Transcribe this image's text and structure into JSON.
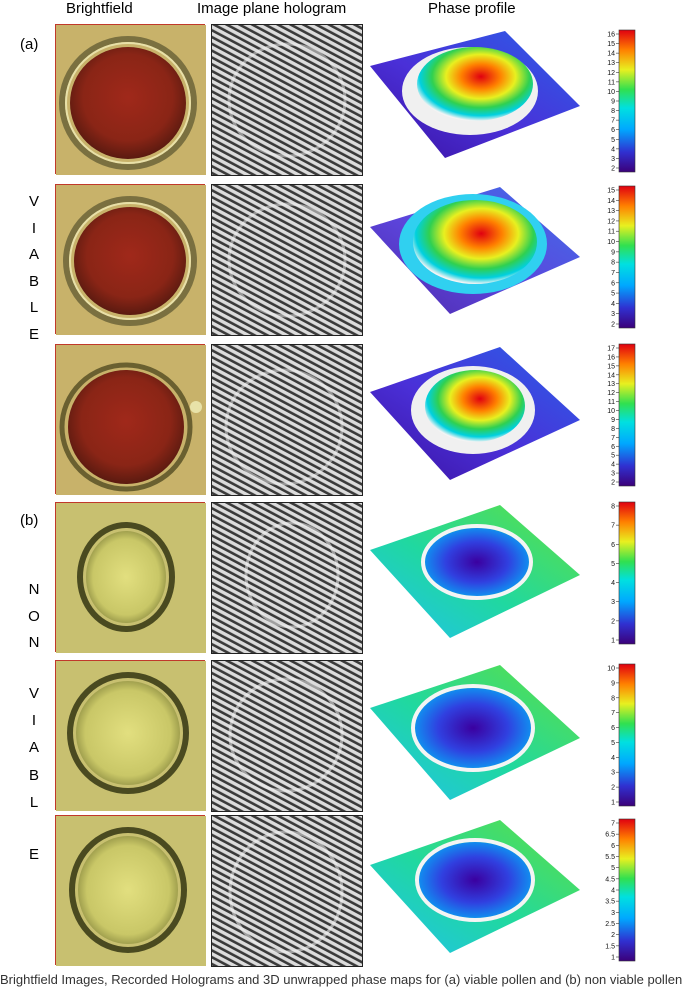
{
  "headers": {
    "brightfield": "Brightfield",
    "hologram": "Image plane hologram",
    "phase": "Phase profile"
  },
  "groups": {
    "a": {
      "tag": "(a)",
      "letters": [
        "V",
        "I",
        "A",
        "B",
        "L",
        "E"
      ]
    },
    "b": {
      "tag": "(b)",
      "letters": [
        "N",
        "O",
        "N",
        "V",
        "I",
        "A",
        "B",
        "L",
        "E"
      ]
    }
  },
  "colorbars": [
    {
      "ticks": [
        "16",
        "15",
        "14",
        "13",
        "12",
        "11",
        "10",
        "9",
        "8",
        "7",
        "6",
        "5",
        "4",
        "3",
        "2"
      ]
    },
    {
      "ticks": [
        "15",
        "14",
        "13",
        "12",
        "11",
        "10",
        "9",
        "8",
        "7",
        "6",
        "5",
        "4",
        "3",
        "2"
      ]
    },
    {
      "ticks": [
        "17",
        "16",
        "15",
        "14",
        "13",
        "12",
        "11",
        "10",
        "9",
        "8",
        "7",
        "6",
        "5",
        "4",
        "3",
        "2"
      ]
    },
    {
      "ticks": [
        "8",
        "7",
        "6",
        "5",
        "4",
        "3",
        "2",
        "1"
      ]
    },
    {
      "ticks": [
        "10",
        "9",
        "8",
        "7",
        "6",
        "5",
        "4",
        "3",
        "2",
        "1"
      ]
    },
    {
      "ticks": [
        "7",
        "6.5",
        "6",
        "5.5",
        "5",
        "4.5",
        "4",
        "3.5",
        "3",
        "2.5",
        "2",
        "1.5",
        "1"
      ]
    }
  ],
  "rows": [
    {
      "group": "viable"
    },
    {
      "group": "viable"
    },
    {
      "group": "viable"
    },
    {
      "group": "non-viable"
    },
    {
      "group": "non-viable"
    },
    {
      "group": "non-viable"
    }
  ],
  "caption": "Brightfield Images, Recorded Holograms and 3D unwrapped phase maps for (a) viable pollen and (b) non viable pollen"
}
